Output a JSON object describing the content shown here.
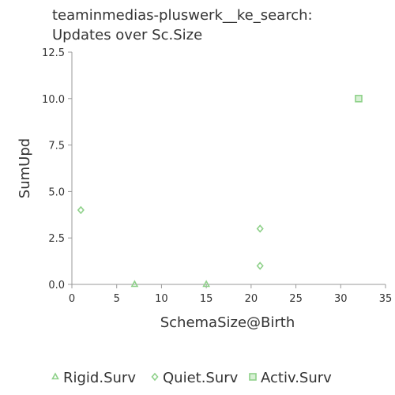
{
  "chart_data": {
    "type": "scatter",
    "title_lines": [
      "teaminmedias-pluswerk__ke_search:",
      "Updates over Sc.Size"
    ],
    "xlabel": "SchemaSize@Birth",
    "ylabel": "SumUpd",
    "xlim": [
      0,
      35
    ],
    "ylim": [
      0,
      12.5
    ],
    "x_ticks": [
      "0",
      "5",
      "10",
      "15",
      "20",
      "25",
      "30",
      "35"
    ],
    "y_ticks": [
      "0.0",
      "2.5",
      "5.0",
      "7.5",
      "10.0",
      "12.5"
    ],
    "grid": false,
    "legend_position": "bottom",
    "series": [
      {
        "name": "Rigid.Surv",
        "marker": "triangle",
        "color": "#8fd18a",
        "points": [
          {
            "x": 7,
            "y": 0
          },
          {
            "x": 15,
            "y": 0
          }
        ]
      },
      {
        "name": "Quiet.Surv",
        "marker": "diamond",
        "color": "#8fd18a",
        "points": [
          {
            "x": 1,
            "y": 4
          },
          {
            "x": 21,
            "y": 3
          },
          {
            "x": 21,
            "y": 1
          }
        ]
      },
      {
        "name": "Activ.Surv",
        "marker": "square",
        "color": "#8fd18a",
        "points": [
          {
            "x": 32,
            "y": 10
          }
        ]
      }
    ]
  }
}
